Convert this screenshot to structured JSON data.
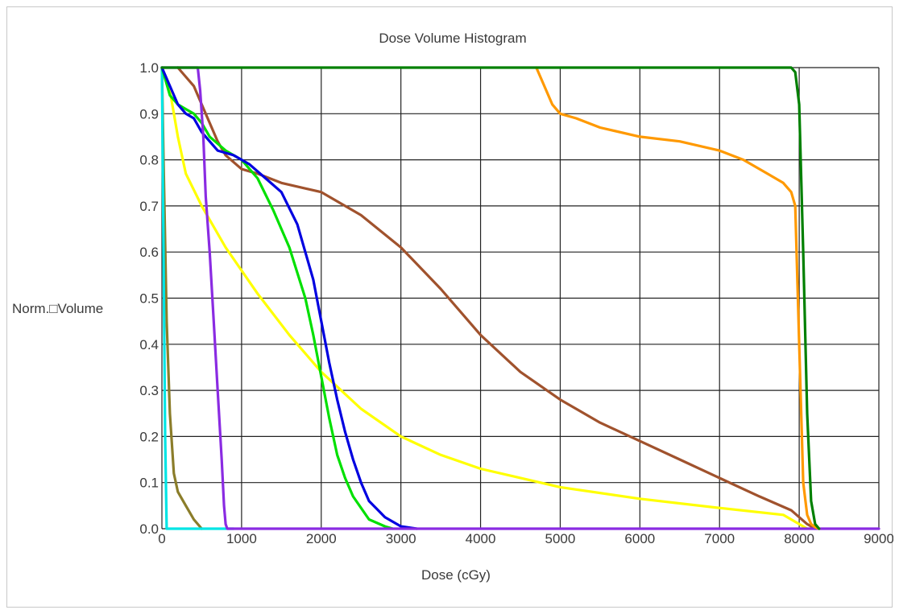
{
  "chart_data": {
    "type": "line",
    "title": "Dose Volume Histogram",
    "xlabel": "Dose (cGy)",
    "ylabel": "Norm.□Volume",
    "xlim": [
      0,
      9000
    ],
    "ylim": [
      0,
      1.0
    ],
    "x_ticks": [
      "0",
      "1000",
      "2000",
      "3000",
      "4000",
      "5000",
      "6000",
      "7000",
      "8000",
      "9000"
    ],
    "y_ticks": [
      "0.0",
      "0.1",
      "0.2",
      "0.3",
      "0.4",
      "0.5",
      "0.6",
      "0.7",
      "0.8",
      "0.9",
      "1.0"
    ],
    "grid": true,
    "legend": "none",
    "series": [
      {
        "color": "#8b7d2a",
        "x": [
          0,
          20,
          60,
          100,
          150,
          200,
          300,
          400,
          500
        ],
        "y": [
          1.0,
          0.8,
          0.45,
          0.25,
          0.12,
          0.08,
          0.05,
          0.02,
          0.0
        ]
      },
      {
        "color": "#00e5e5",
        "x": [
          0,
          20,
          40,
          60,
          900
        ],
        "y": [
          1.0,
          0.6,
          0.2,
          0.0,
          0.0
        ]
      },
      {
        "color": "#ffff00",
        "x": [
          0,
          100,
          200,
          300,
          500,
          800,
          1200,
          1600,
          2000,
          2500,
          3000,
          3500,
          4000,
          5000,
          6000,
          7000,
          7800,
          8100
        ],
        "y": [
          1.0,
          0.95,
          0.85,
          0.77,
          0.7,
          0.61,
          0.51,
          0.42,
          0.34,
          0.26,
          0.2,
          0.16,
          0.13,
          0.09,
          0.065,
          0.045,
          0.03,
          0.0
        ]
      },
      {
        "color": "#a0522d",
        "x": [
          200,
          300,
          400,
          500,
          600,
          700,
          800,
          1000,
          1200,
          1500,
          2000,
          2500,
          3000,
          3500,
          4000,
          4500,
          5000,
          5500,
          6000,
          6500,
          7000,
          7500,
          7900,
          8100,
          8200
        ],
        "y": [
          1.0,
          0.98,
          0.96,
          0.92,
          0.88,
          0.84,
          0.81,
          0.78,
          0.77,
          0.75,
          0.73,
          0.68,
          0.61,
          0.52,
          0.42,
          0.34,
          0.28,
          0.23,
          0.19,
          0.15,
          0.11,
          0.07,
          0.04,
          0.01,
          0.0
        ]
      },
      {
        "color": "#00e000",
        "x": [
          0,
          100,
          200,
          300,
          400,
          500,
          600,
          800,
          1000,
          1200,
          1400,
          1600,
          1800,
          1900,
          2000,
          2100,
          2200,
          2300,
          2400,
          2600,
          2800,
          2900
        ],
        "y": [
          1.0,
          0.94,
          0.92,
          0.91,
          0.9,
          0.88,
          0.85,
          0.82,
          0.8,
          0.76,
          0.69,
          0.61,
          0.5,
          0.42,
          0.33,
          0.24,
          0.16,
          0.11,
          0.07,
          0.02,
          0.005,
          0.0
        ]
      },
      {
        "color": "#0000e0",
        "x": [
          0,
          100,
          200,
          300,
          400,
          500,
          600,
          700,
          900,
          1100,
          1300,
          1500,
          1700,
          1900,
          2000,
          2100,
          2200,
          2300,
          2400,
          2500,
          2600,
          2800,
          3000,
          3200
        ],
        "y": [
          1.0,
          0.96,
          0.92,
          0.9,
          0.89,
          0.86,
          0.84,
          0.82,
          0.81,
          0.79,
          0.76,
          0.73,
          0.66,
          0.54,
          0.45,
          0.36,
          0.28,
          0.21,
          0.15,
          0.1,
          0.06,
          0.025,
          0.005,
          0.0
        ]
      },
      {
        "color": "#8a2be2",
        "x": [
          0,
          450,
          480,
          520,
          550,
          600,
          650,
          700,
          750,
          780,
          800,
          820,
          9000
        ],
        "y": [
          1.0,
          1.0,
          0.95,
          0.85,
          0.72,
          0.6,
          0.45,
          0.3,
          0.15,
          0.05,
          0.01,
          0.0,
          0.0
        ]
      },
      {
        "color": "#ff9900",
        "x": [
          4700,
          4800,
          4900,
          5000,
          5200,
          5500,
          6000,
          6500,
          7000,
          7300,
          7600,
          7800,
          7900,
          7950,
          8000,
          8050,
          8100,
          8150,
          8200,
          8250
        ],
        "y": [
          1.0,
          0.96,
          0.92,
          0.9,
          0.89,
          0.87,
          0.85,
          0.84,
          0.82,
          0.8,
          0.77,
          0.75,
          0.73,
          0.7,
          0.4,
          0.1,
          0.03,
          0.01,
          0.003,
          0.0
        ]
      },
      {
        "color": "#008000",
        "x": [
          0,
          7900,
          7950,
          8000,
          8050,
          8100,
          8150,
          8200,
          8250
        ],
        "y": [
          1.0,
          1.0,
          0.99,
          0.92,
          0.6,
          0.25,
          0.06,
          0.01,
          0.0
        ]
      }
    ]
  }
}
